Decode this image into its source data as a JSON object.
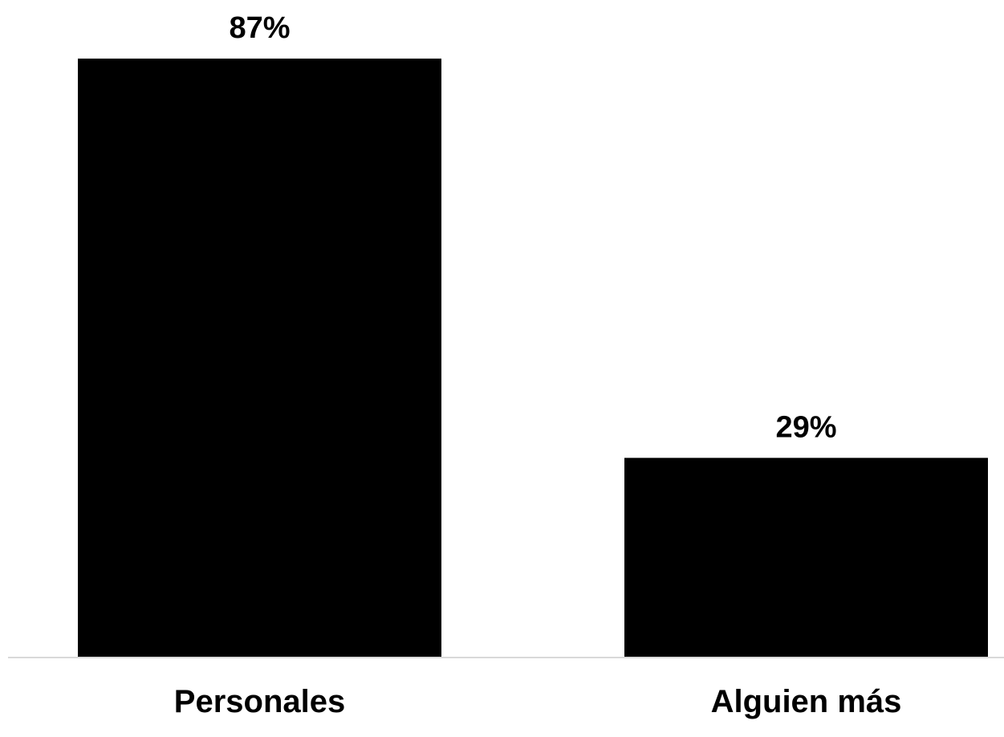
{
  "chart_data": {
    "type": "bar",
    "title": "",
    "xlabel": "",
    "ylabel": "",
    "categories": [
      "Personales",
      "Alguien más"
    ],
    "values": [
      87,
      29
    ],
    "value_labels": [
      "87%",
      "29%"
    ],
    "ylim": [
      0,
      100
    ],
    "grid": false,
    "legend": "none",
    "colors": {
      "bar": "#000000",
      "axis": "#d9d9d9",
      "text": "#000000",
      "background": "#ffffff"
    }
  }
}
